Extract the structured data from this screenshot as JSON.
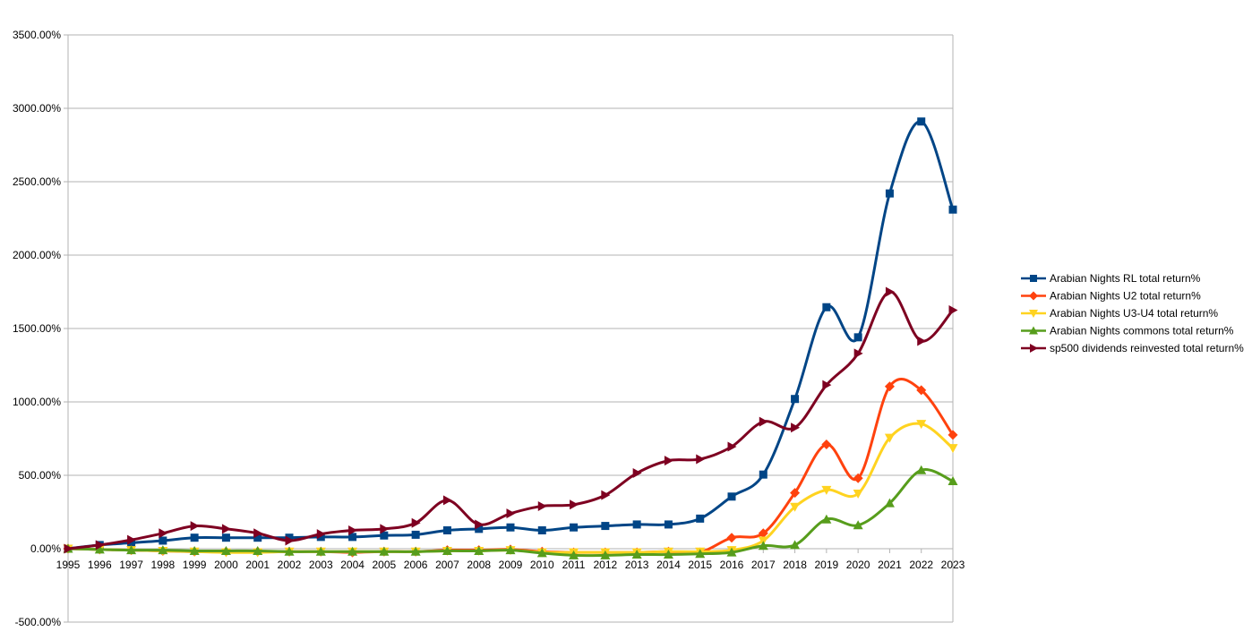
{
  "chart_data": {
    "type": "line",
    "title": "",
    "xlabel": "",
    "ylabel": "",
    "x": [
      1995,
      1996,
      1997,
      1998,
      1999,
      2000,
      2001,
      2002,
      2003,
      2004,
      2005,
      2006,
      2007,
      2008,
      2009,
      2010,
      2011,
      2012,
      2013,
      2014,
      2015,
      2016,
      2017,
      2018,
      2019,
      2020,
      2021,
      2022,
      2023
    ],
    "ylim": [
      -500,
      3500
    ],
    "y_ticks": [
      -500,
      0,
      500,
      1000,
      1500,
      2000,
      2500,
      3000,
      3500
    ],
    "y_tick_labels": [
      "-500.00%",
      "0.00%",
      "500.00%",
      "1000.00%",
      "1500.00%",
      "2000.00%",
      "2500.00%",
      "3000.00%",
      "3500.00%"
    ],
    "grid": "horizontal",
    "legend_position": "right",
    "series": [
      {
        "name": "Arabian Nights RL total return%",
        "color": "#004586",
        "marker": "square",
        "values": [
          0,
          25,
          40,
          55,
          75,
          75,
          75,
          75,
          80,
          80,
          90,
          95,
          125,
          135,
          145,
          125,
          145,
          155,
          165,
          165,
          205,
          355,
          505,
          1020,
          1645,
          1440,
          2420,
          2910,
          2310
        ]
      },
      {
        "name": "Arabian Nights U2 total return%",
        "color": "#ff420e",
        "marker": "diamond",
        "values": [
          0,
          -5,
          -10,
          -15,
          -20,
          -20,
          -20,
          -20,
          -20,
          -25,
          -20,
          -20,
          -10,
          -10,
          -5,
          -20,
          -25,
          -25,
          -25,
          -20,
          -25,
          75,
          105,
          380,
          710,
          480,
          1105,
          1080,
          775
        ]
      },
      {
        "name": "Arabian Nights U3-U4 total return%",
        "color": "#ffd320",
        "marker": "triangle-down",
        "values": [
          0,
          -5,
          -10,
          -15,
          -20,
          -25,
          -25,
          -20,
          -20,
          -20,
          -20,
          -20,
          -15,
          -15,
          -10,
          -25,
          -25,
          -25,
          -25,
          -20,
          -20,
          -10,
          55,
          285,
          400,
          375,
          755,
          850,
          685
        ]
      },
      {
        "name": "Arabian Nights commons total return%",
        "color": "#579d1c",
        "marker": "triangle-up",
        "values": [
          0,
          -5,
          -10,
          -10,
          -15,
          -15,
          -15,
          -20,
          -20,
          -20,
          -20,
          -20,
          -15,
          -15,
          -10,
          -30,
          -45,
          -45,
          -40,
          -40,
          -35,
          -25,
          20,
          25,
          200,
          160,
          310,
          535,
          460
        ]
      },
      {
        "name": "sp500 dividends reinvested total return%",
        "color": "#7e0021",
        "marker": "triangle-right",
        "values": [
          0,
          25,
          60,
          105,
          155,
          135,
          105,
          55,
          100,
          125,
          135,
          175,
          330,
          165,
          240,
          290,
          300,
          365,
          515,
          600,
          610,
          695,
          865,
          825,
          1115,
          1330,
          1750,
          1415,
          1625
        ]
      }
    ]
  }
}
